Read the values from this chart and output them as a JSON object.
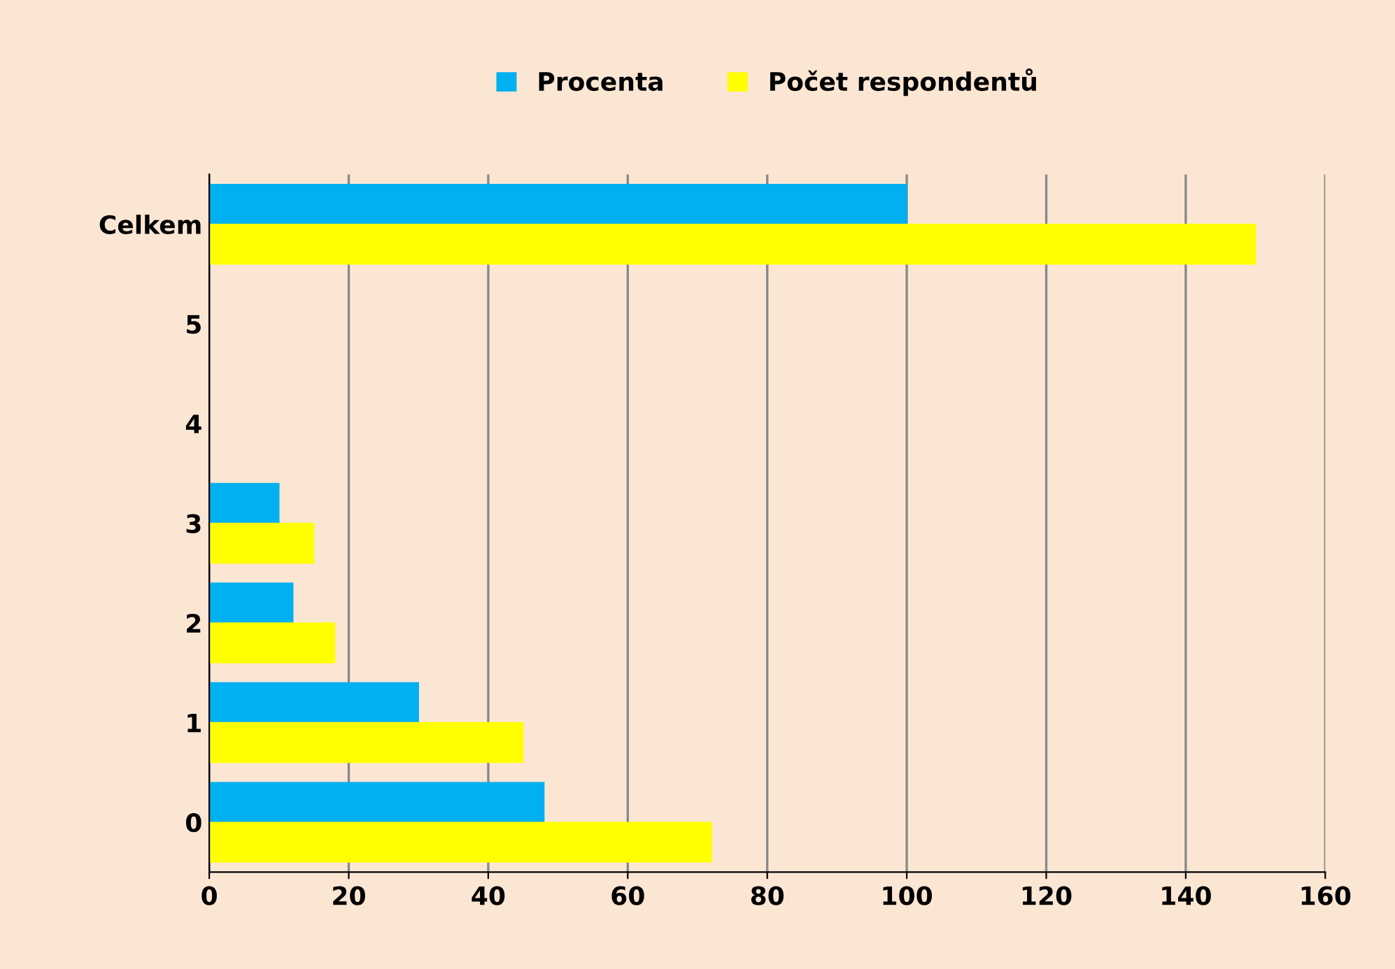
{
  "chart_data": {
    "type": "bar",
    "orientation": "horizontal",
    "categories": [
      "Celkem",
      "5",
      "4",
      "3",
      "2",
      "1",
      "0"
    ],
    "series": [
      {
        "name": "Procenta",
        "color": "#00b0f0",
        "values": [
          100,
          0,
          0,
          10,
          12,
          30,
          48
        ]
      },
      {
        "name": "Počet respondentů",
        "color": "#ffff00",
        "values": [
          150,
          0,
          0,
          15,
          18,
          45,
          72
        ]
      }
    ],
    "xlim": [
      0,
      160
    ],
    "xticks": [
      0,
      20,
      40,
      60,
      80,
      100,
      120,
      140,
      160
    ],
    "grid": "x",
    "legend": "top"
  }
}
